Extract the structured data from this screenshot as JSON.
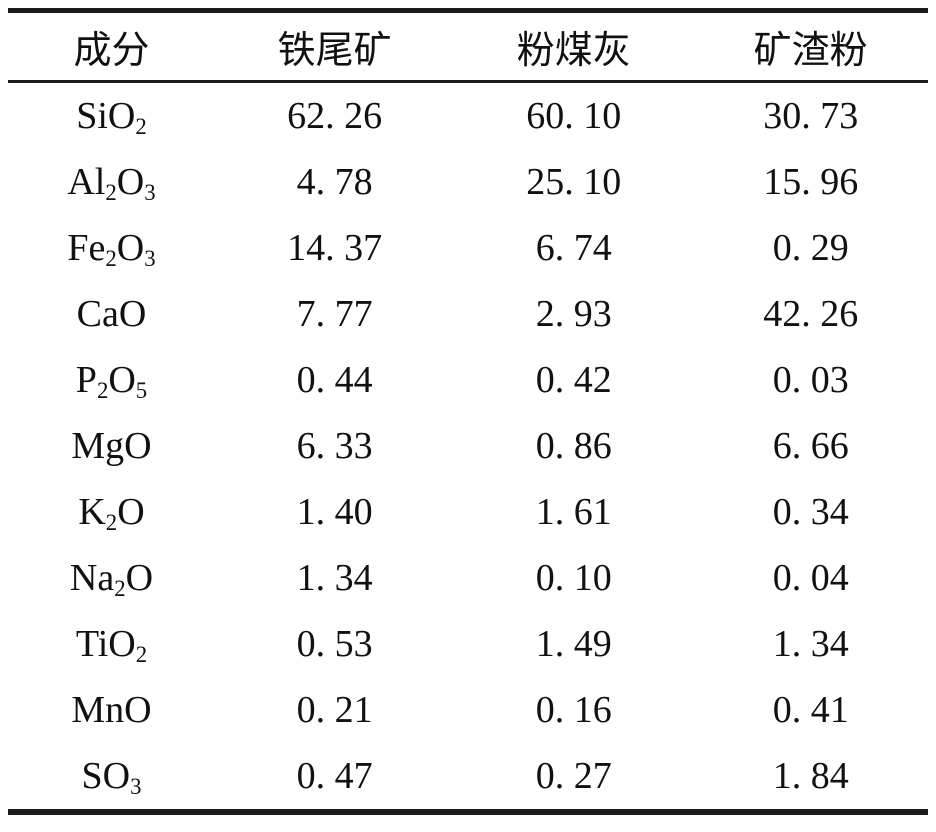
{
  "table": {
    "headers": [
      "成分",
      "铁尾矿",
      "粉煤灰",
      "矿渣粉"
    ],
    "rows": [
      {
        "formula": [
          {
            "t": "SiO"
          },
          {
            "t": "2",
            "sub": true
          }
        ],
        "values": [
          "62. 26",
          "60. 10",
          "30. 73"
        ]
      },
      {
        "formula": [
          {
            "t": "Al"
          },
          {
            "t": "2",
            "sub": true
          },
          {
            "t": "O"
          },
          {
            "t": "3",
            "sub": true
          }
        ],
        "values": [
          "4. 78",
          "25. 10",
          "15. 96"
        ]
      },
      {
        "formula": [
          {
            "t": "Fe"
          },
          {
            "t": "2",
            "sub": true
          },
          {
            "t": "O"
          },
          {
            "t": "3",
            "sub": true
          }
        ],
        "values": [
          "14. 37",
          "6. 74",
          "0. 29"
        ]
      },
      {
        "formula": [
          {
            "t": "CaO"
          }
        ],
        "values": [
          "7. 77",
          "2. 93",
          "42. 26"
        ]
      },
      {
        "formula": [
          {
            "t": "P"
          },
          {
            "t": "2",
            "sub": true
          },
          {
            "t": "O"
          },
          {
            "t": "5",
            "sub": true
          }
        ],
        "values": [
          "0. 44",
          "0. 42",
          "0. 03"
        ]
      },
      {
        "formula": [
          {
            "t": "MgO"
          }
        ],
        "values": [
          "6. 33",
          "0. 86",
          "6. 66"
        ]
      },
      {
        "formula": [
          {
            "t": "K"
          },
          {
            "t": "2",
            "sub": true
          },
          {
            "t": "O"
          }
        ],
        "values": [
          "1. 40",
          "1. 61",
          "0. 34"
        ]
      },
      {
        "formula": [
          {
            "t": "Na"
          },
          {
            "t": "2",
            "sub": true
          },
          {
            "t": "O"
          }
        ],
        "values": [
          "1. 34",
          "0. 10",
          "0. 04"
        ]
      },
      {
        "formula": [
          {
            "t": "TiO"
          },
          {
            "t": "2",
            "sub": true
          }
        ],
        "values": [
          "0. 53",
          "1. 49",
          "1. 34"
        ]
      },
      {
        "formula": [
          {
            "t": "MnO"
          }
        ],
        "values": [
          "0. 21",
          "0. 16",
          "0. 41"
        ]
      },
      {
        "formula": [
          {
            "t": "SO"
          },
          {
            "t": "3",
            "sub": true
          }
        ],
        "values": [
          "0. 47",
          "0. 27",
          "1. 84"
        ]
      }
    ]
  },
  "chart_data": {
    "type": "table",
    "columns": [
      "成分",
      "铁尾矿",
      "粉煤灰",
      "矿渣粉"
    ],
    "rows": [
      [
        "SiO2",
        62.26,
        60.1,
        30.73
      ],
      [
        "Al2O3",
        4.78,
        25.1,
        15.96
      ],
      [
        "Fe2O3",
        14.37,
        6.74,
        0.29
      ],
      [
        "CaO",
        7.77,
        2.93,
        42.26
      ],
      [
        "P2O5",
        0.44,
        0.42,
        0.03
      ],
      [
        "MgO",
        6.33,
        0.86,
        6.66
      ],
      [
        "K2O",
        1.4,
        1.61,
        0.34
      ],
      [
        "Na2O",
        1.34,
        0.1,
        0.04
      ],
      [
        "TiO2",
        0.53,
        1.49,
        1.34
      ],
      [
        "MnO",
        0.21,
        0.16,
        0.41
      ],
      [
        "SO3",
        0.47,
        0.27,
        1.84
      ]
    ]
  },
  "colors": {
    "text": "#111111",
    "rule": "#1c1c1c",
    "background": "#ffffff"
  }
}
